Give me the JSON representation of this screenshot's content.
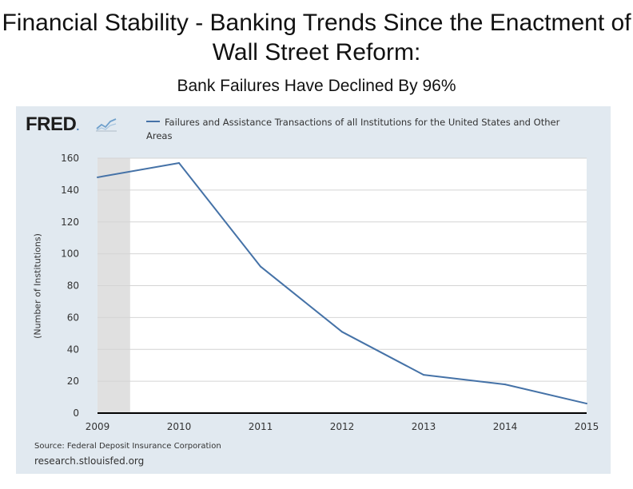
{
  "slide": {
    "title": "Financial Stability - Banking Trends Since the Enactment of Wall Street Reform:",
    "subtitle": "Bank Failures Have Declined By 96%"
  },
  "fred": {
    "logo": "FRED",
    "legend": "Failures and Assistance Transactions of all Institutions for the United States and Other Areas",
    "source": "Source: Federal Deposit Insurance Corporation",
    "url": "research.stlouisfed.org"
  },
  "colors": {
    "line": "#4572a7",
    "panel": "#e1e9f0",
    "recession": "#e0e0e0"
  },
  "chart_data": {
    "type": "line",
    "title": "",
    "xlabel": "",
    "ylabel": "(Number of Institutions)",
    "xlim": [
      2009,
      2015
    ],
    "ylim": [
      0,
      160
    ],
    "x_ticks": [
      "2009",
      "2010",
      "2011",
      "2012",
      "2013",
      "2014",
      "2015"
    ],
    "y_ticks": [
      0,
      20,
      40,
      60,
      80,
      100,
      120,
      140,
      160
    ],
    "grid": true,
    "legend_position": "top",
    "recession_shading": [
      [
        2009,
        2009.4
      ]
    ],
    "series": [
      {
        "name": "Failures and Assistance Transactions of all Institutions for the United States and Other Areas",
        "x": [
          2009,
          2010,
          2011,
          2012,
          2013,
          2014,
          2015
        ],
        "y": [
          148,
          157,
          92,
          51,
          24,
          18,
          6
        ]
      }
    ]
  }
}
